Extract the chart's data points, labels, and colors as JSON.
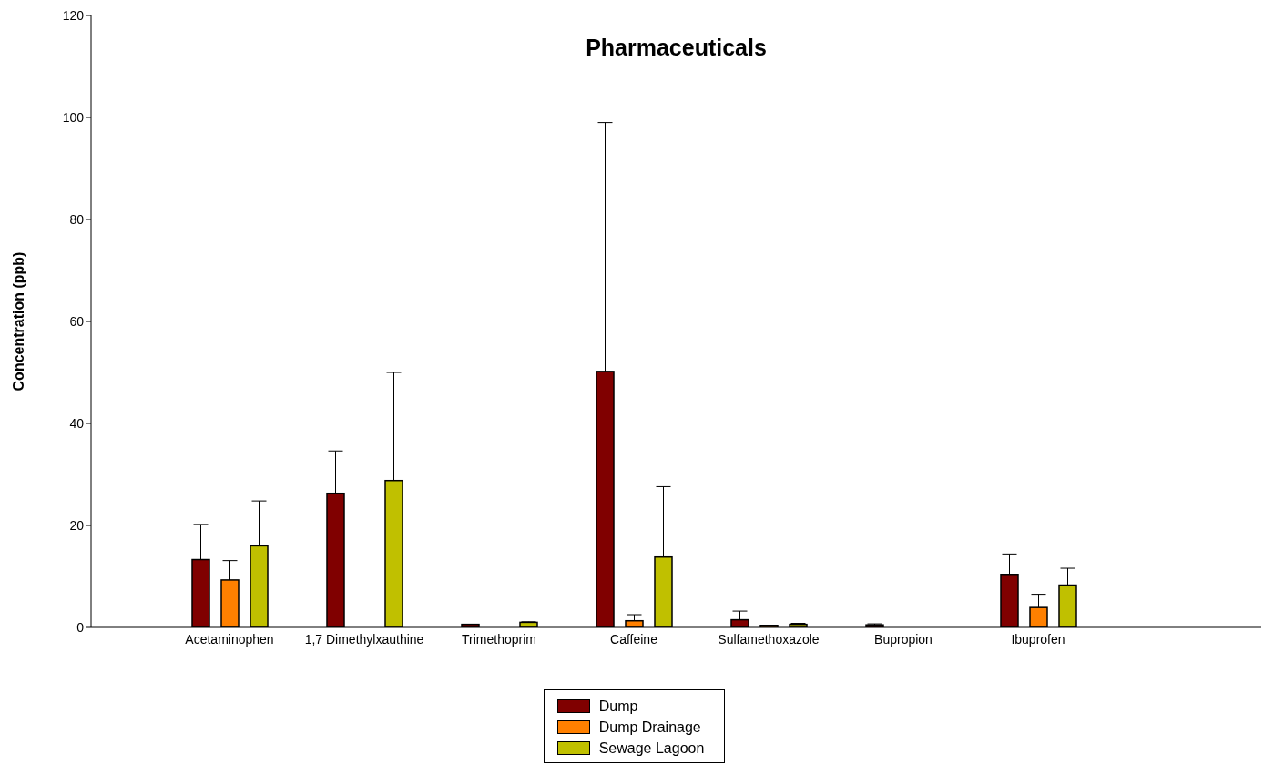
{
  "chart_data": {
    "type": "bar",
    "title": "Pharmaceuticals",
    "ylabel": "Concentration (ppb)",
    "categories": [
      "Acetaminophen",
      "1,7 Dimethylxauthine",
      "Trimethoprim",
      "Caffeine",
      "Sulfamethoxazole",
      "Bupropion",
      "Ibuprofen"
    ],
    "series": [
      {
        "name": "Dump",
        "color": "#800000",
        "values": [
          13.3,
          26.3,
          0.6,
          50.2,
          1.5,
          0.5,
          10.4
        ],
        "errors": [
          [
            13.3,
            20.2
          ],
          [
            26.3,
            34.6
          ],
          null,
          [
            50.2,
            99.0
          ],
          [
            1.5,
            3.2
          ],
          [
            0.5,
            0.7
          ],
          [
            10.4,
            14.4
          ]
        ]
      },
      {
        "name": "Dump Drainage",
        "color": "#ff8000",
        "values": [
          9.3,
          null,
          null,
          1.3,
          0.4,
          null,
          3.9
        ],
        "errors": [
          [
            9.3,
            13.1
          ],
          null,
          null,
          [
            1.3,
            2.5
          ],
          null,
          null,
          [
            3.9,
            6.5
          ]
        ]
      },
      {
        "name": "Sewage Lagoon",
        "color": "#c0c000",
        "values": [
          16.0,
          28.8,
          1.0,
          13.8,
          0.6,
          null,
          8.3
        ],
        "errors": [
          [
            16.0,
            24.8
          ],
          [
            28.8,
            50.0
          ],
          [
            1.0,
            1.1
          ],
          [
            13.8,
            27.6
          ],
          [
            0.6,
            0.8
          ],
          null,
          [
            8.3,
            11.6
          ]
        ]
      }
    ],
    "ylim": [
      0,
      120
    ],
    "yticks": [
      0,
      20,
      40,
      60,
      80,
      100,
      120
    ],
    "grid": false,
    "legend": "bottom"
  }
}
